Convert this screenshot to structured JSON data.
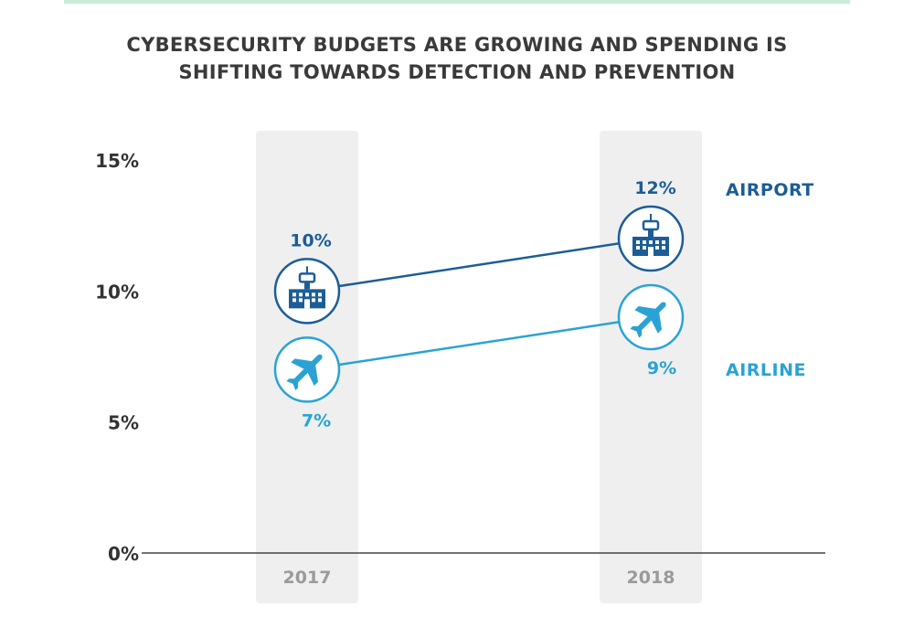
{
  "colors": {
    "airport": "#1c5d97",
    "airline": "#2aa3d4",
    "band": "#efefef",
    "axis": "#444444"
  },
  "chart_data": {
    "type": "line",
    "title": "CYBERSECURITY BUDGETS ARE GROWING AND SPENDING IS SHIFTING TOWARDS DETECTION AND PREVENTION",
    "title_lines": [
      "CYBERSECURITY BUDGETS ARE GROWING AND SPENDING IS",
      "SHIFTING TOWARDS DETECTION AND PREVENTION"
    ],
    "categories": [
      "2017",
      "2018"
    ],
    "ylim": [
      0,
      15
    ],
    "yticks": [
      0,
      5,
      10,
      15
    ],
    "ytick_labels": [
      "0%",
      "5%",
      "10%",
      "15%"
    ],
    "grid": false,
    "legend": "right",
    "series": [
      {
        "name": "AIRPORT",
        "key": "airport",
        "icon": "airport-tower-icon",
        "values": [
          10,
          12
        ],
        "labels": [
          "10%",
          "12%"
        ]
      },
      {
        "name": "AIRLINE",
        "key": "airline",
        "icon": "airplane-icon",
        "values": [
          7,
          9
        ],
        "labels": [
          "7%",
          "9%"
        ]
      }
    ]
  }
}
